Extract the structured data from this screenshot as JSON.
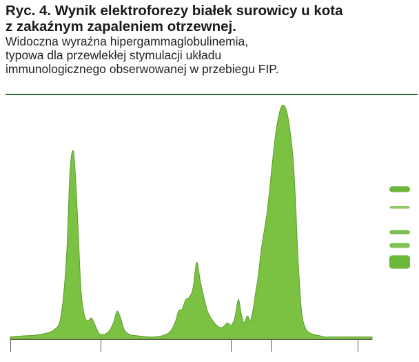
{
  "caption": {
    "title_line1": "Ryc. 4. Wynik elektroforezy białek surowicy u kota",
    "title_line2": "z zakaźnym zapaleniem otrzewnej.",
    "desc_line1": "Widoczna wyraźna hipergammaglobulinemia,",
    "desc_line2": "typowa dla przewlekłej stymulacji układu",
    "desc_line3": "immunologicznego obserwowanej w przebiegu FIP."
  },
  "colors": {
    "fill": "#7cc242",
    "stroke": "#5a9a2c",
    "rule": "#2e6b3a",
    "band": "#6cb83a"
  },
  "chart_data": {
    "type": "area",
    "title": "",
    "xlabel": "",
    "ylabel": "",
    "xlim": [
      0,
      100
    ],
    "ylim": [
      0,
      100
    ],
    "grid": false,
    "dividers_x": [
      0,
      25,
      61,
      72,
      96
    ],
    "series": [
      {
        "x": [
          0,
          4,
          8,
          12,
          14,
          15.5,
          16.5,
          17.5,
          18.5,
          19.5,
          20.5,
          21.5,
          22.5,
          24,
          25,
          27,
          28.5,
          29.5,
          30.5,
          31.5,
          33,
          35,
          38,
          40,
          42,
          44,
          45.5,
          46.5,
          47.5,
          48.5,
          49.5,
          50.5,
          51.5,
          52.5,
          53.5,
          54.5,
          55.5,
          57,
          58.5,
          60,
          61,
          62,
          63,
          63.8,
          64.6,
          65.5,
          66.3,
          67,
          67.8,
          68.5,
          69.5,
          71,
          72.3,
          73.5,
          75,
          76.5,
          78,
          78.8,
          79.5,
          80.5,
          81.5,
          82.5,
          84,
          85.5,
          87,
          88.5,
          89.5,
          91,
          92,
          94,
          96,
          100
        ],
        "y": [
          1,
          1.5,
          2,
          4,
          10,
          35,
          72,
          80,
          55,
          22,
          10,
          8,
          9,
          4,
          2,
          3,
          7,
          12,
          9,
          4,
          2,
          1.5,
          1,
          1,
          1.5,
          3,
          7,
          12,
          13,
          17,
          18,
          22,
          33,
          25,
          18,
          12,
          9,
          6,
          5,
          7,
          6,
          9,
          17,
          11,
          7,
          10,
          8,
          12,
          20,
          27,
          40,
          55,
          74,
          90,
          100,
          97,
          80,
          60,
          35,
          12,
          5,
          3,
          2,
          1.5,
          1,
          1,
          1,
          1,
          1,
          1,
          1,
          1
        ]
      }
    ],
    "gel_bands": [
      {
        "pos": 0.02,
        "width": 0.07,
        "opacity": 1.0
      },
      {
        "pos": 0.24,
        "width": 0.03,
        "opacity": 0.75
      },
      {
        "pos": 0.54,
        "width": 0.05,
        "opacity": 0.9
      },
      {
        "pos": 0.7,
        "width": 0.06,
        "opacity": 0.85
      },
      {
        "pos": 0.9,
        "width": 0.16,
        "opacity": 1.0
      }
    ]
  }
}
